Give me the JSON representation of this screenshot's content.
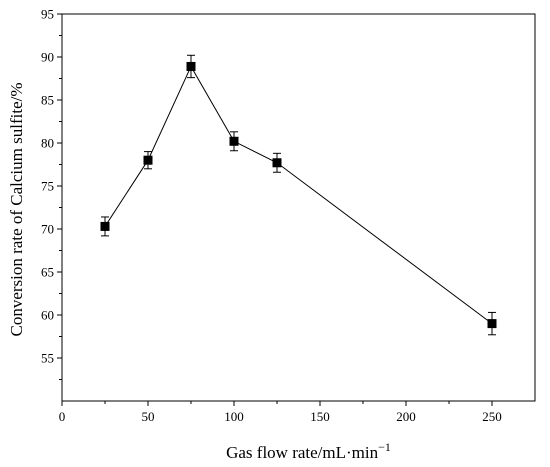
{
  "chart_data": {
    "type": "line",
    "xlabel": "Gas flow rate/mL·min",
    "xlabel_superscript": "−1",
    "ylabel": "Conversion rate of Calcium sulfite/%",
    "xlim": [
      0,
      275
    ],
    "ylim": [
      50,
      95
    ],
    "x_ticks": [
      0,
      50,
      100,
      150,
      200,
      250
    ],
    "y_ticks": [
      55,
      60,
      65,
      70,
      75,
      80,
      85,
      90,
      95
    ],
    "grid": false,
    "series": [
      {
        "x": [
          25,
          50,
          75,
          100,
          125,
          250
        ],
        "y": [
          70.3,
          78.0,
          88.9,
          80.2,
          77.7,
          59.0
        ],
        "error": [
          1.1,
          1.0,
          1.3,
          1.1,
          1.1,
          1.3
        ],
        "marker": "square",
        "color": "#000000"
      }
    ]
  }
}
